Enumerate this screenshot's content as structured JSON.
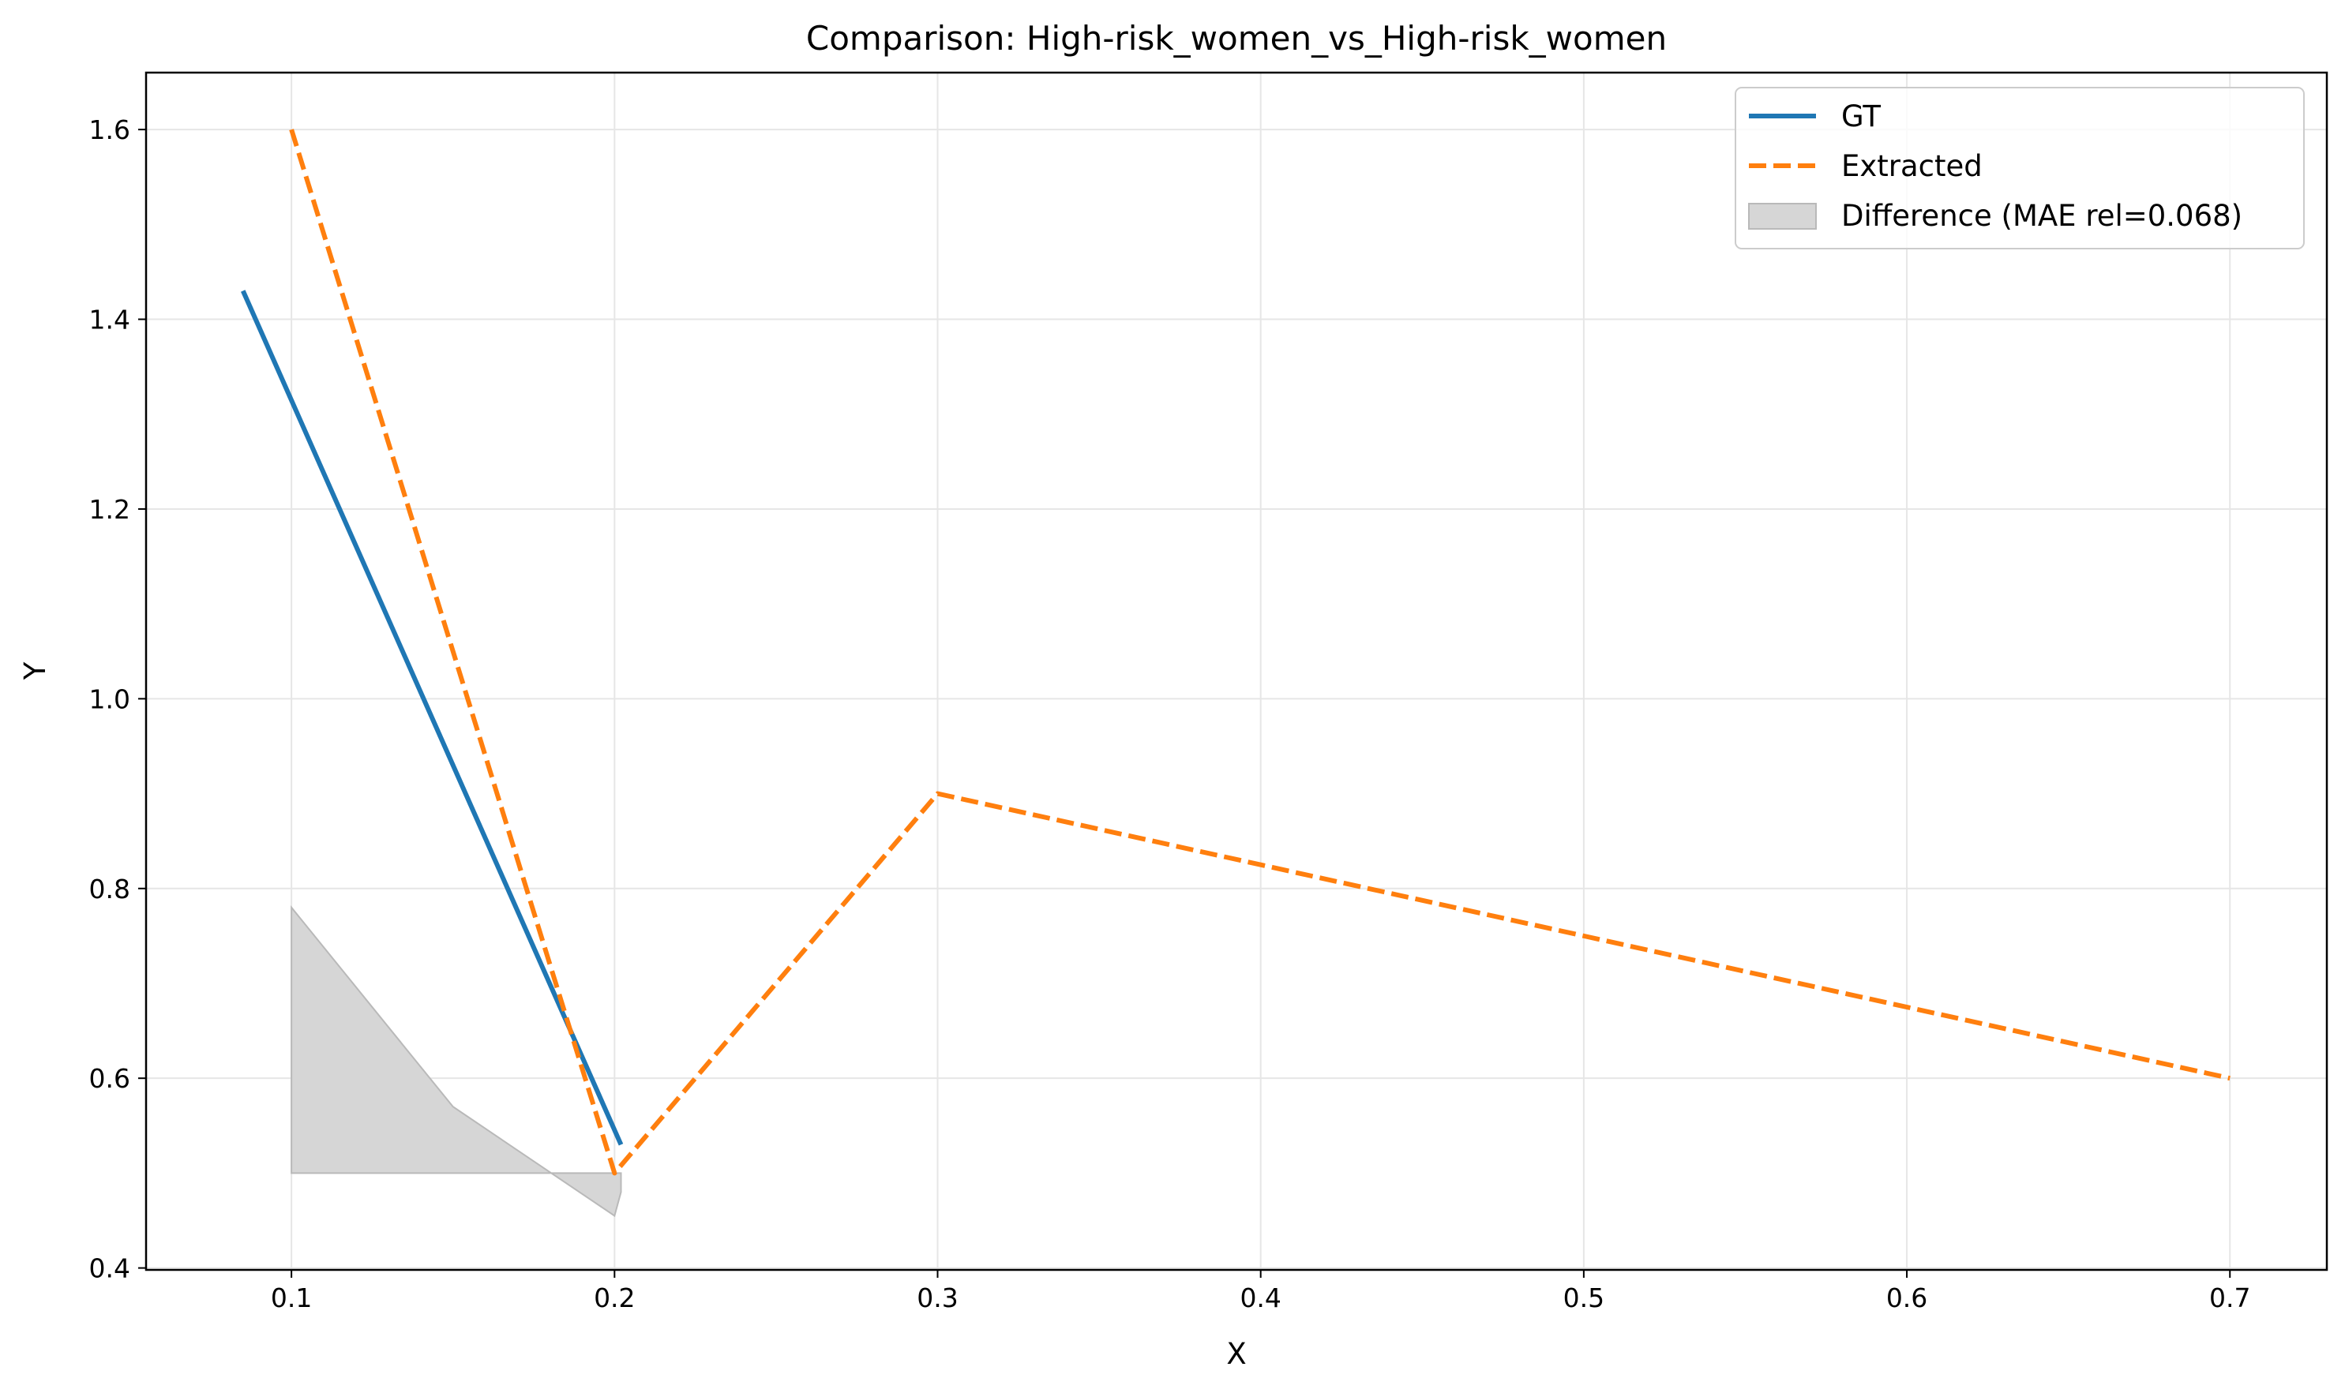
{
  "chart_data": {
    "type": "line",
    "title": "Comparison: High-risk_women_vs_High-risk_women",
    "xlabel": "X",
    "ylabel": "Y",
    "xlim": [
      0.055,
      0.73
    ],
    "ylim": [
      0.398,
      1.66
    ],
    "x_ticks": [
      {
        "value": 0.1,
        "label": "0.1"
      },
      {
        "value": 0.2,
        "label": "0.2"
      },
      {
        "value": 0.3,
        "label": "0.3"
      },
      {
        "value": 0.4,
        "label": "0.4"
      },
      {
        "value": 0.5,
        "label": "0.5"
      },
      {
        "value": 0.6,
        "label": "0.6"
      },
      {
        "value": 0.7,
        "label": "0.7"
      }
    ],
    "y_ticks": [
      {
        "value": 0.4,
        "label": "0.4"
      },
      {
        "value": 0.6,
        "label": "0.6"
      },
      {
        "value": 0.8,
        "label": "0.8"
      },
      {
        "value": 1.0,
        "label": "1.0"
      },
      {
        "value": 1.2,
        "label": "1.2"
      },
      {
        "value": 1.4,
        "label": "1.4"
      },
      {
        "value": 1.6,
        "label": "1.6"
      }
    ],
    "grid": true,
    "legend_position": "top-right",
    "series": [
      {
        "name": "GT",
        "style": "solid",
        "color": "#1f77b4",
        "x": [
          0.085,
          0.202
        ],
        "y": [
          1.43,
          0.53
        ]
      },
      {
        "name": "Extracted",
        "style": "dashed",
        "color": "#ff7f0e",
        "x": [
          0.1,
          0.2,
          0.3,
          0.4,
          0.5,
          0.6,
          0.7
        ],
        "y": [
          1.6,
          0.5,
          0.9,
          0.825,
          0.75,
          0.675,
          0.6
        ]
      }
    ],
    "difference_area": {
      "name": "Difference (MAE rel=0.068)",
      "color": "#d6d6d6",
      "edge_color": "#b9b9b9",
      "upper": {
        "x": [
          0.1,
          0.15,
          0.2,
          0.202
        ],
        "y": [
          0.78,
          0.57,
          0.455,
          0.48
        ]
      },
      "lower": {
        "x": [
          0.1,
          0.202
        ],
        "y": [
          0.5,
          0.5
        ]
      }
    }
  }
}
